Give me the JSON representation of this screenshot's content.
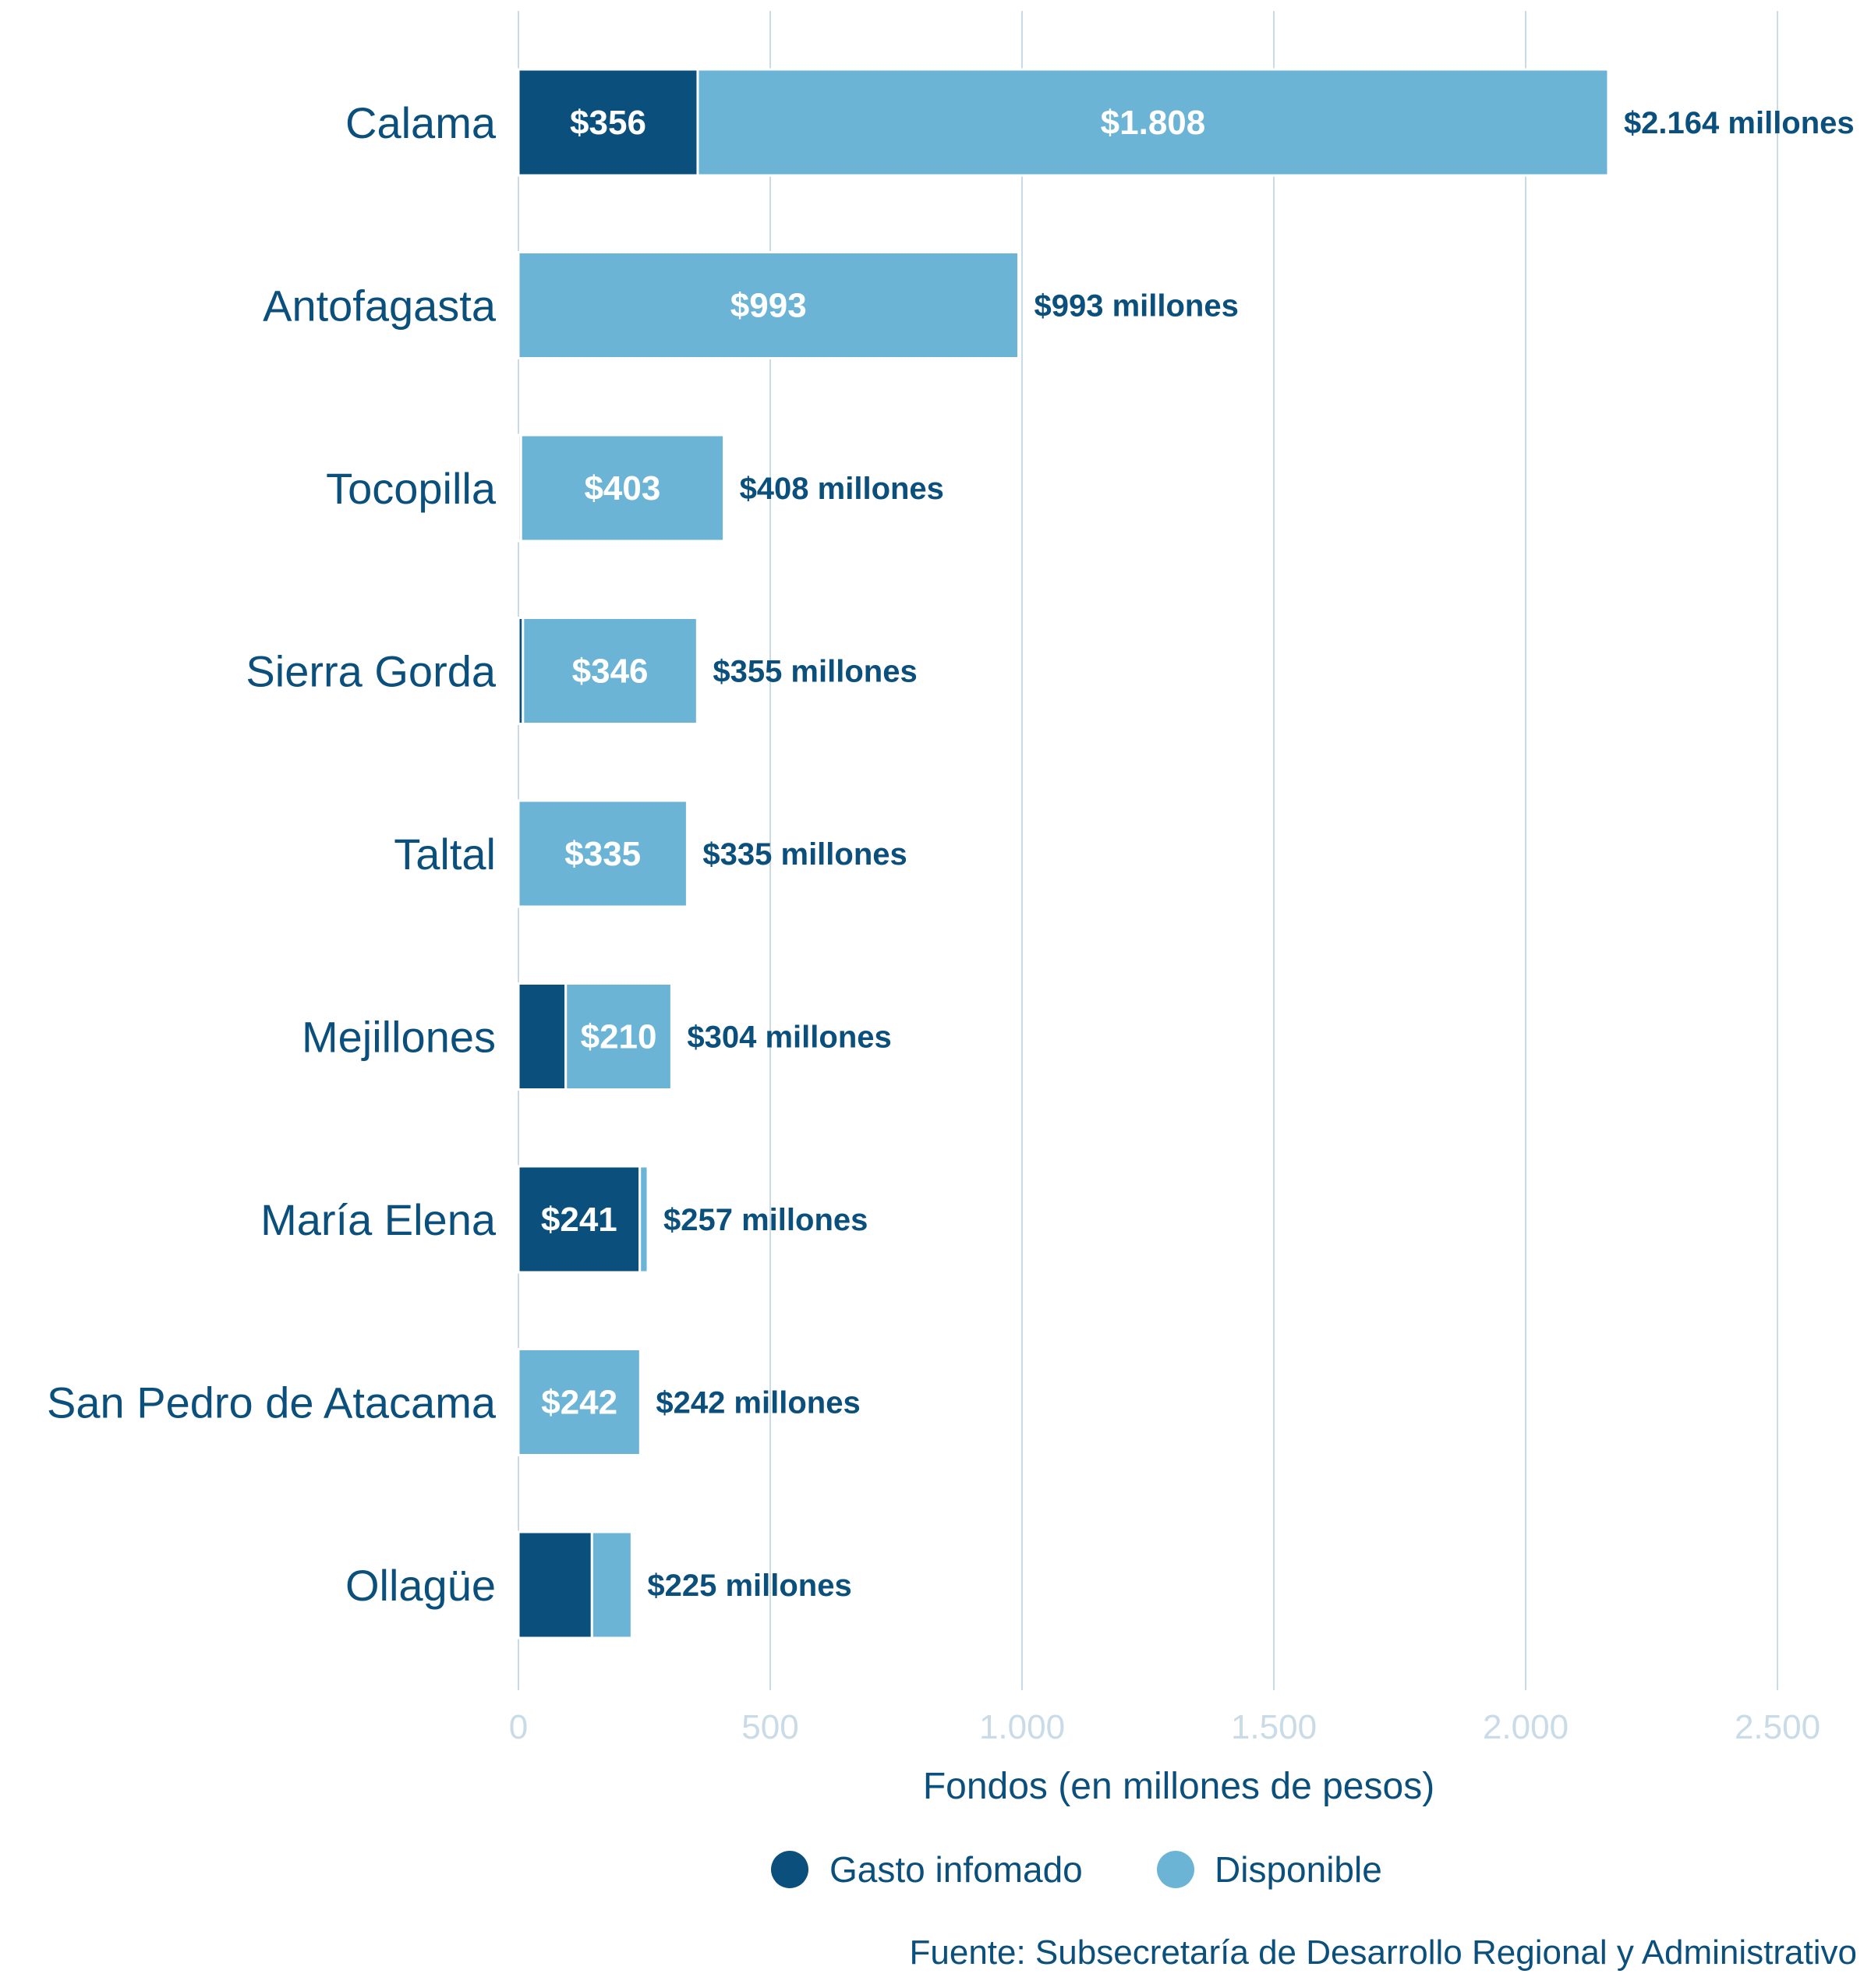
{
  "chart_data": {
    "type": "bar",
    "orientation": "horizontal",
    "stacked": true,
    "categories": [
      "Calama",
      "Antofagasta",
      "Tocopilla",
      "Sierra Gorda",
      "Taltal",
      "Mejillones",
      "María Elena",
      "San Pedro de Atacama",
      "Ollagüe"
    ],
    "series": [
      {
        "name": "Gasto infomado",
        "color": "#0b4f7c",
        "values": [
          356,
          0,
          5,
          9,
          0,
          94,
          241,
          0,
          146
        ]
      },
      {
        "name": "Disponible",
        "color": "#6cb4d6",
        "values": [
          1808,
          993,
          403,
          346,
          335,
          210,
          16,
          242,
          79
        ]
      }
    ],
    "inner_labels": [
      [
        "$356",
        "$1.808"
      ],
      [
        null,
        "$993"
      ],
      [
        null,
        "$403"
      ],
      [
        null,
        "$346"
      ],
      [
        null,
        "$335"
      ],
      [
        null,
        "$210"
      ],
      [
        "$241",
        null
      ],
      [
        null,
        "$242"
      ],
      [
        null,
        null
      ]
    ],
    "total_labels": [
      "$2.164 millones",
      "$993 millones",
      "$408 millones",
      "$355 millones",
      "$335 millones",
      "$304 millones",
      "$257 millones",
      "$242 millones",
      "$225 millones"
    ],
    "xlabel": "Fondos (en millones de pesos)",
    "xlim": [
      0,
      2500
    ],
    "xticks": [
      0,
      500,
      1000,
      1500,
      2000,
      2500
    ],
    "xtick_labels": [
      "0",
      "500",
      "1.000",
      "1.500",
      "2.000",
      "2.500"
    ],
    "grid": "vertical",
    "legend_position": "bottom-center"
  },
  "source": "Fuente: Subsecretaría de Desarrollo Regional y Administrativo",
  "colors": {
    "gridline": "#c9dbe6",
    "text": "#0b4f7c"
  }
}
